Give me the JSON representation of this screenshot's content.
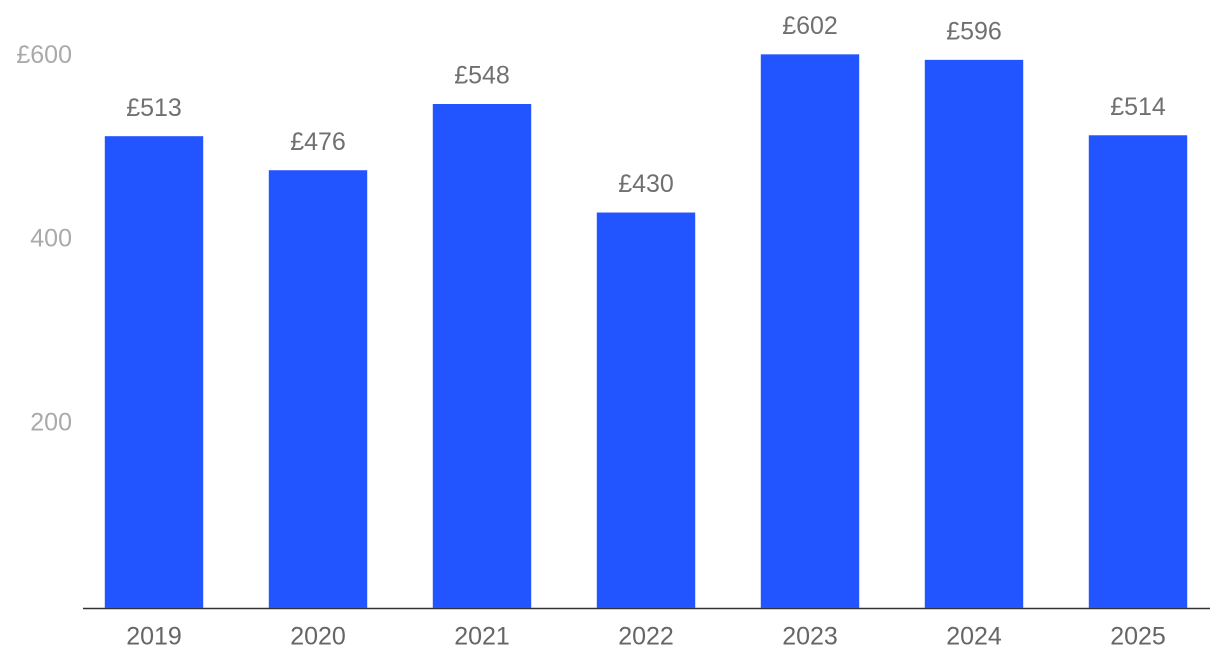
{
  "chart_data": {
    "type": "bar",
    "categories": [
      "2019",
      "2020",
      "2021",
      "2022",
      "2023",
      "2024",
      "2025"
    ],
    "values": [
      513,
      476,
      548,
      430,
      602,
      596,
      514
    ],
    "value_labels": [
      "£513",
      "£476",
      "£548",
      "£430",
      "£602",
      "£596",
      "£514"
    ],
    "color": "#2254ff",
    "ylim": [
      0,
      660
    ],
    "yticks": [
      200,
      400,
      {
        "value": 600,
        "label": "£600"
      }
    ],
    "grid": false
  }
}
